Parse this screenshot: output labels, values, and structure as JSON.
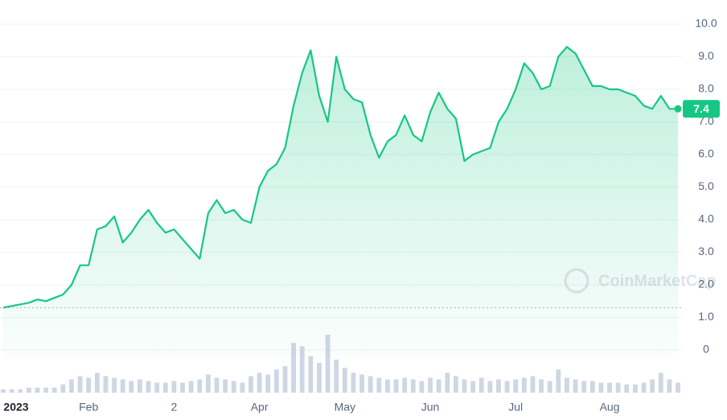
{
  "chart_data": {
    "type": "line",
    "categories": [
      "2023",
      null,
      null,
      null,
      null,
      null,
      null,
      null,
      null,
      null,
      "Feb",
      null,
      null,
      null,
      null,
      null,
      null,
      null,
      null,
      null,
      "2",
      null,
      null,
      null,
      null,
      null,
      null,
      null,
      null,
      null,
      "Apr",
      null,
      null,
      null,
      null,
      null,
      null,
      null,
      null,
      null,
      "May",
      null,
      null,
      null,
      null,
      null,
      null,
      null,
      null,
      null,
      "Jun",
      null,
      null,
      null,
      null,
      null,
      null,
      null,
      null,
      null,
      "Jul",
      null,
      null,
      null,
      null,
      null,
      null,
      null,
      null,
      null,
      null,
      "Aug",
      null,
      null,
      null,
      null,
      null,
      null,
      null,
      null
    ],
    "series": [
      {
        "color": "#16c784",
        "values": [
          1.3,
          1.35,
          1.4,
          1.45,
          1.55,
          1.5,
          1.6,
          1.7,
          2.0,
          2.6,
          2.6,
          3.7,
          3.8,
          4.1,
          3.3,
          3.6,
          4.0,
          4.3,
          3.9,
          3.6,
          3.7,
          3.4,
          3.1,
          2.8,
          4.2,
          4.6,
          4.2,
          4.3,
          4.0,
          3.9,
          5.0,
          5.5,
          5.7,
          6.2,
          7.5,
          8.5,
          9.2,
          7.8,
          7.0,
          9.0,
          8.0,
          7.7,
          7.6,
          6.6,
          5.9,
          6.4,
          6.6,
          7.2,
          6.6,
          6.4,
          7.3,
          7.9,
          7.4,
          7.1,
          5.8,
          6.0,
          6.1,
          6.2,
          7.0,
          7.4,
          8.0,
          8.8,
          8.5,
          8.0,
          8.1,
          9.0,
          9.3,
          9.1,
          8.6,
          8.1,
          8.1,
          8.0,
          8.0,
          7.9,
          7.8,
          7.5,
          7.4,
          7.8,
          7.4,
          7.4
        ]
      }
    ],
    "volume": {
      "color": "#cfd6e4",
      "values": [
        2,
        2,
        2,
        3,
        3,
        3,
        3,
        5,
        8,
        10,
        9,
        12,
        10,
        9,
        8,
        7,
        8,
        7,
        6,
        6,
        7,
        6,
        7,
        8,
        11,
        9,
        8,
        7,
        6,
        10,
        12,
        11,
        14,
        16,
        30,
        28,
        22,
        18,
        35,
        20,
        15,
        12,
        11,
        10,
        9,
        8,
        8,
        9,
        8,
        7,
        9,
        8,
        12,
        10,
        8,
        7,
        9,
        7,
        8,
        7,
        8,
        9,
        10,
        8,
        7,
        14,
        9,
        8,
        7,
        7,
        6,
        6,
        6,
        5,
        5,
        6,
        8,
        12,
        8,
        6
      ]
    },
    "ylim": [
      0,
      10
    ],
    "yticks": [
      0,
      {
        "value": 1,
        "label": "1.0"
      },
      {
        "value": 2,
        "label": "2.0"
      },
      {
        "value": 3,
        "label": "3.0"
      },
      {
        "value": 4,
        "label": "4.0"
      },
      {
        "value": 5,
        "label": "5.0"
      },
      {
        "value": 6,
        "label": "6.0"
      },
      {
        "value": 7,
        "label": "7.0"
      },
      {
        "value": 8,
        "label": "8.0"
      },
      {
        "value": 9,
        "label": "9.0"
      },
      {
        "value": 10,
        "label": "10.0"
      }
    ],
    "grid": true,
    "watermark": "CoinMarketCap"
  }
}
